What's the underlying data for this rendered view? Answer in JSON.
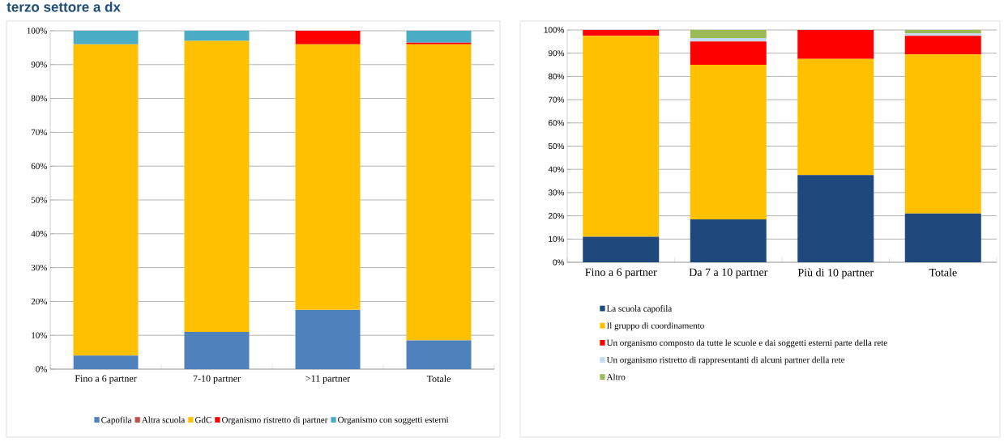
{
  "chart_data": [
    {
      "type": "bar",
      "title": "terzo settore a dx",
      "stacked": true,
      "categories": [
        "Fino a 6 partner",
        "7-10 partner",
        ">11 partner",
        "Totale"
      ],
      "series": [
        {
          "name": "Capofila",
          "color": "#4f81bd",
          "values": [
            4,
            11,
            17.5,
            8.5
          ]
        },
        {
          "name": "Altra scuola",
          "color": "#c0504d",
          "values": [
            0,
            0,
            0,
            0
          ]
        },
        {
          "name": "GdC",
          "color": "#ffc000",
          "values": [
            92,
            86,
            78.5,
            87.5
          ]
        },
        {
          "name": "Organismo ristretto di partner",
          "color": "#ff0000",
          "values": [
            0,
            0,
            4,
            0.5
          ]
        },
        {
          "name": "Organismo con soggetti esterni",
          "color": "#4bacc6",
          "values": [
            4,
            3,
            0,
            3.5
          ]
        }
      ],
      "ylim": [
        0,
        100
      ],
      "yticks": [
        {
          "value": 0,
          "label": "0%"
        },
        {
          "value": 10,
          "label": "10%"
        },
        {
          "value": 20,
          "label": "20%"
        },
        {
          "value": 30,
          "label": "30%"
        },
        {
          "value": 40,
          "label": "40%"
        },
        {
          "value": 50,
          "label": "50%"
        },
        {
          "value": 60,
          "label": "60%"
        },
        {
          "value": 70,
          "label": "70%"
        },
        {
          "value": 80,
          "label": "80%"
        },
        {
          "value": 90,
          "label": "90%"
        },
        {
          "value": 100,
          "label": "100%"
        }
      ],
      "grid": "y",
      "legend": "bottom"
    },
    {
      "type": "bar",
      "stacked": true,
      "categories": [
        "Fino a 6 partner",
        "Da 7 a 10 partner",
        "Più di 10 partner",
        "Totale"
      ],
      "series": [
        {
          "name": "La scuola capofila",
          "color": "#1f497d",
          "values": [
            11,
            18.5,
            37.5,
            21
          ]
        },
        {
          "name": "Il gruppo di coordinamento",
          "color": "#ffc000",
          "values": [
            86.5,
            66.5,
            50,
            68.5
          ]
        },
        {
          "name": "Un organismo composto da tutte le scuole e dai soggetti esterni parte della rete",
          "color": "#ff0000",
          "values": [
            2.5,
            10,
            12.5,
            8
          ]
        },
        {
          "name": "Un organismo ristretto di rappresentanti di alcuni partner della rete",
          "color": "#c6d9f1",
          "values": [
            0,
            1.5,
            0,
            1
          ]
        },
        {
          "name": "Altro",
          "color": "#9bbb59",
          "values": [
            0,
            3.5,
            0,
            1.5
          ]
        }
      ],
      "ylim": [
        0,
        100
      ],
      "yticks": [
        {
          "value": 0,
          "label": "0%"
        },
        {
          "value": 10,
          "label": "10%"
        },
        {
          "value": 20,
          "label": "20%"
        },
        {
          "value": 30,
          "label": "30%"
        },
        {
          "value": 40,
          "label": "40%"
        },
        {
          "value": 50,
          "label": "50%"
        },
        {
          "value": 60,
          "label": "60%"
        },
        {
          "value": 70,
          "label": "70%"
        },
        {
          "value": 80,
          "label": "80%"
        },
        {
          "value": 90,
          "label": "90%"
        },
        {
          "value": 100,
          "label": "100%"
        }
      ],
      "grid": "y",
      "legend": "bottom"
    }
  ]
}
